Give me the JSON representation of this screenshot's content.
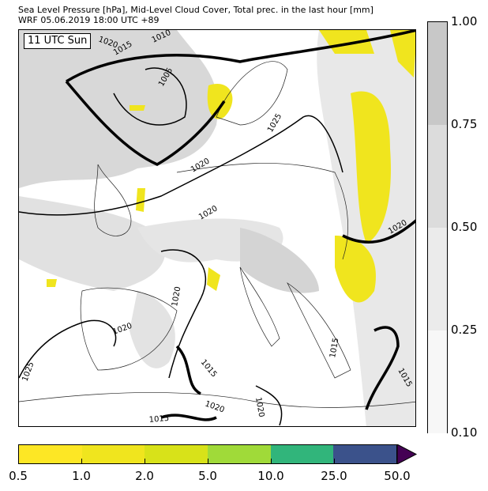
{
  "header": {
    "title": "Sea Level Pressure [hPa], Mid-Level Cloud Cover, Total prec. in the last hour [mm]",
    "subtitle": "WRF 05.06.2019 18:00 UTC +89"
  },
  "map": {
    "time_label": "11 UTC Sun",
    "isobar_labels": [
      "1020",
      "1015",
      "1010",
      "1005",
      "1020",
      "1025",
      "1020",
      "1020",
      "1015",
      "1020",
      "1015",
      "1020",
      "1025",
      "1015",
      "1015",
      "1020",
      "1020"
    ]
  },
  "cloud_colorbar": {
    "ticks": [
      "1.00",
      "0.75",
      "0.50",
      "0.25",
      "0.10"
    ],
    "colors": [
      "#c8c8c8",
      "#dcdcdc",
      "#ebebeb",
      "#f7f7f7"
    ]
  },
  "precip_colorbar": {
    "ticks": [
      "0.5",
      "1.0",
      "2.0",
      "5.0",
      "10.0",
      "25.0",
      "50.0"
    ],
    "colors": [
      "#fde725",
      "#f0e51e",
      "#d8e219",
      "#a0da39",
      "#31b57b",
      "#3b528b"
    ],
    "extend_color": "#440154"
  }
}
